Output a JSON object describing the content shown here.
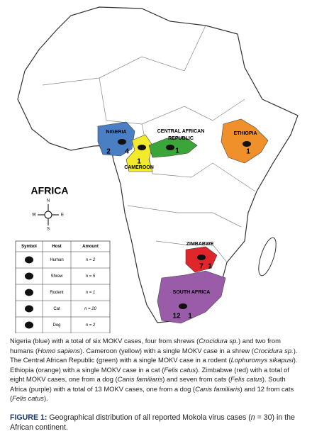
{
  "map": {
    "title": "AFRICA",
    "compass": {
      "n": "N",
      "s": "S",
      "e": "E",
      "w": "W"
    },
    "countries": [
      {
        "name": "NIGERIA",
        "color": "#4a7fc4",
        "counts": [
          2,
          4
        ]
      },
      {
        "name": "CAMEROON",
        "color": "#f2ea2a",
        "counts": [
          1
        ]
      },
      {
        "name": "CENTRAL AFRICAN REPUBLIC",
        "color": "#3aa639",
        "counts": [
          1
        ]
      },
      {
        "name": "ETHIOPIA",
        "color": "#f0902a",
        "counts": [
          1
        ]
      },
      {
        "name": "ZIMBABWE",
        "color": "#e0262b",
        "counts": [
          7,
          1
        ]
      },
      {
        "name": "SOUTH AFRICA",
        "color": "#9a5ba8",
        "counts": [
          12,
          1
        ]
      }
    ],
    "legend": {
      "headers": [
        "Symbol",
        "Host",
        "Amount"
      ],
      "rows": [
        {
          "host": "Human",
          "amount": "n = 2"
        },
        {
          "host": "Shrew",
          "amount": "n = 5"
        },
        {
          "host": "Rodent",
          "amount": "n = 1"
        },
        {
          "host": "Cat",
          "amount": "n = 20"
        },
        {
          "host": "Dog",
          "amount": "n = 2"
        }
      ]
    }
  },
  "caption": {
    "segments": [
      {
        "text": "Nigeria (blue) with a total of six MOKV cases, four from shrews (",
        "italic": false
      },
      {
        "text": "Crocidura sp.",
        "italic": true
      },
      {
        "text": ") and two from humans (",
        "italic": false
      },
      {
        "text": "Homo sapiens",
        "italic": true
      },
      {
        "text": "). Cameroon (yellow) with a single MOKV case in a shrew (",
        "italic": false
      },
      {
        "text": "Crocidura sp.",
        "italic": true
      },
      {
        "text": "). The Central African Republic (green) with a single MOKV case in a rodent (",
        "italic": false
      },
      {
        "text": "Lophuromys sikapusi",
        "italic": true
      },
      {
        "text": "). Ethiopia (orange) with a single MOKV case in a cat (",
        "italic": false
      },
      {
        "text": "Felis catus",
        "italic": true
      },
      {
        "text": "). Zimbabwe (red) with a total of eight MOKV cases, one from a dog (",
        "italic": false
      },
      {
        "text": "Canis familiaris",
        "italic": true
      },
      {
        "text": ") and seven from cats (",
        "italic": false
      },
      {
        "text": "Felis catus",
        "italic": true
      },
      {
        "text": "). South Africa (purple) with a total of 13 MOKV cases, one from a dog (",
        "italic": false
      },
      {
        "text": "Canis familiaris",
        "italic": true
      },
      {
        "text": ") and 12 from cats (",
        "italic": false
      },
      {
        "text": "Felis catus",
        "italic": true
      },
      {
        "text": ").",
        "italic": false
      }
    ]
  },
  "figure": {
    "label": "FIGURE 1:",
    "segments": [
      {
        "text": " Geographical distribution of all reported Mokola virus cases (",
        "italic": false
      },
      {
        "text": "n",
        "italic": true
      },
      {
        "text": " = 30) in the African continent.",
        "italic": false
      }
    ]
  }
}
